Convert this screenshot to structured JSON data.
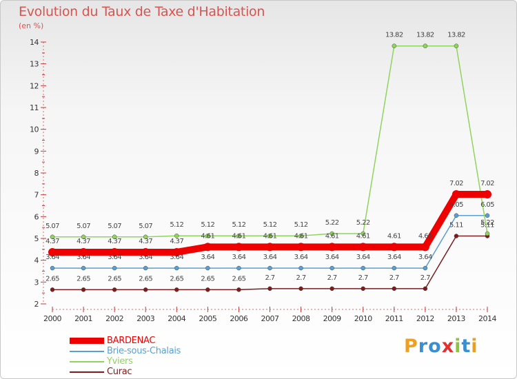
{
  "title": "Evolution du Taux de Taxe d'Habitation",
  "subtitle": "(en %)",
  "chart_data": {
    "type": "line",
    "title": "Evolution du Taux de Taxe d'Habitation",
    "ylabel": "(en %)",
    "xlabel": "",
    "x": [
      "2000",
      "2001",
      "2002",
      "2003",
      "2004",
      "2005",
      "2006",
      "2007",
      "2008",
      "2009",
      "2010",
      "2011",
      "2012",
      "2013",
      "2014"
    ],
    "ylim": [
      2,
      14
    ],
    "yticks": [
      "2",
      "3",
      "4",
      "5",
      "6",
      "7",
      "8",
      "9",
      "10",
      "11",
      "12",
      "13",
      "14"
    ],
    "grid": false,
    "series": [
      {
        "name": "Curac",
        "color": "#7b1b1b",
        "values": [
          2.65,
          2.65,
          2.65,
          2.65,
          2.65,
          2.65,
          2.65,
          2.7,
          2.7,
          2.7,
          2.7,
          2.7,
          2.7,
          5.11,
          5.11
        ],
        "labels": [
          "2.65",
          "2.65",
          "2.65",
          "2.65",
          "2.65",
          "2.65",
          "2.65",
          "2.7",
          "2.7",
          "2.7",
          "2.7",
          "2.7",
          "2.7",
          "5.11",
          "5.11"
        ]
      },
      {
        "name": "Brie-sous-Chalais",
        "color": "#5a9fd4",
        "values": [
          3.64,
          3.64,
          3.64,
          3.64,
          3.64,
          3.64,
          3.64,
          3.64,
          3.64,
          3.64,
          3.64,
          3.64,
          3.64,
          6.05,
          6.05
        ],
        "labels": [
          "3.64",
          "3.64",
          "3.64",
          "3.64",
          "3.64",
          "3.64",
          "3.64",
          "3.64",
          "3.64",
          "3.64",
          "3.64",
          "3.64",
          "3.64",
          "6.05",
          "6.05"
        ]
      },
      {
        "name": "Yviers",
        "color": "#8fd45c",
        "values": [
          5.07,
          5.07,
          5.07,
          5.07,
          5.12,
          5.12,
          5.12,
          5.12,
          5.12,
          5.22,
          5.22,
          13.82,
          13.82,
          13.82,
          5.22
        ],
        "labels": [
          "5.07",
          "5.07",
          "5.07",
          "5.07",
          "5.12",
          "5.12",
          "5.12",
          "5.12",
          "5.12",
          "5.22",
          "5.22",
          "13.82",
          "13.82",
          "13.82",
          "5.22"
        ]
      },
      {
        "name": "BARDENAC",
        "color": "#ee0000",
        "values": [
          4.37,
          4.37,
          4.37,
          4.37,
          4.37,
          4.61,
          4.61,
          4.61,
          4.61,
          4.61,
          4.61,
          4.61,
          4.61,
          7.02,
          7.02
        ],
        "labels": [
          "4.37",
          "4.37",
          "4.37",
          "4.37",
          "4.37",
          "4.61",
          "4.61",
          "4.61",
          "4.61",
          "4.61",
          "4.61",
          "4.61",
          "4.61",
          "7.02",
          "7.02"
        ]
      }
    ]
  },
  "legend": {
    "items": [
      {
        "label": "BARDENAC",
        "color": "#ee0000"
      },
      {
        "label": "Brie-sous-Chalais",
        "color": "#5a9fd4"
      },
      {
        "label": "Yviers",
        "color": "#8fd45c"
      },
      {
        "label": "Curac",
        "color": "#7b1b1b"
      }
    ]
  },
  "logo": {
    "letters": [
      "P",
      "r",
      "o",
      "x",
      "i",
      "t",
      "i"
    ],
    "colors": [
      "#f0a020",
      "#3a8fd0",
      "#3a8fd0",
      "#e03030",
      "#8cc63f",
      "#3a8fd0",
      "#e8a020"
    ]
  }
}
